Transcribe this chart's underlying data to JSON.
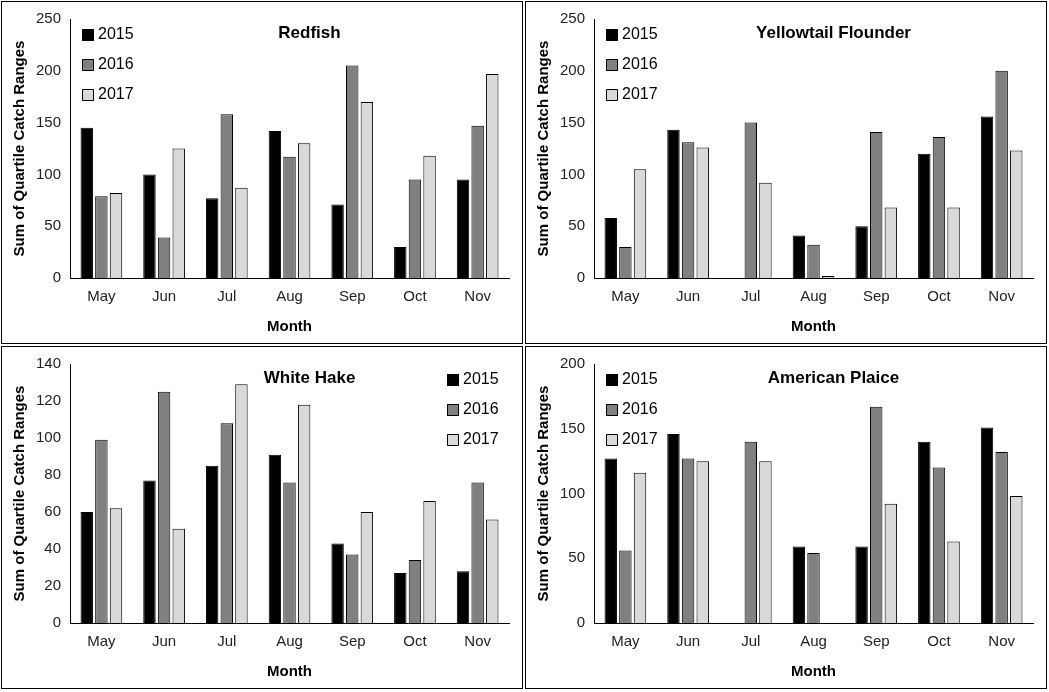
{
  "chart_data": [
    {
      "type": "bar",
      "title": "Redfish",
      "xlabel": "Month",
      "ylabel": "Sum of Quartile Catch Ranges",
      "categories": [
        "May",
        "Jun",
        "Jul",
        "Aug",
        "Sep",
        "Oct",
        "Nov"
      ],
      "ylim": [
        0,
        250
      ],
      "yticks": [
        0,
        50,
        100,
        150,
        200,
        250
      ],
      "grid": false,
      "legend": "top left",
      "series": [
        {
          "name": "2015",
          "color": "#000000",
          "values": [
            145,
            100,
            77,
            142,
            71,
            30,
            95
          ]
        },
        {
          "name": "2016",
          "color": "#808080",
          "values": [
            79,
            39,
            158,
            117,
            205,
            95,
            147
          ]
        },
        {
          "name": "2017",
          "color": "#d9d9d9",
          "values": [
            82,
            125,
            87,
            130,
            170,
            118,
            197
          ]
        }
      ]
    },
    {
      "type": "bar",
      "title": "Yellowtail Flounder",
      "xlabel": "Month",
      "ylabel": "Sum of Quartile Catch Ranges",
      "categories": [
        "May",
        "Jun",
        "Jul",
        "Aug",
        "Sep",
        "Oct",
        "Nov"
      ],
      "ylim": [
        0,
        250
      ],
      "yticks": [
        0,
        50,
        100,
        150,
        200,
        250
      ],
      "grid": false,
      "legend": "top left",
      "series": [
        {
          "name": "2015",
          "color": "#000000",
          "values": [
            58,
            143,
            0,
            41,
            50,
            120,
            156
          ]
        },
        {
          "name": "2016",
          "color": "#808080",
          "values": [
            30,
            131,
            150,
            32,
            141,
            136,
            200
          ]
        },
        {
          "name": "2017",
          "color": "#d9d9d9",
          "values": [
            105,
            126,
            92,
            2,
            68,
            68,
            123
          ]
        }
      ]
    },
    {
      "type": "bar",
      "title": "White Hake",
      "xlabel": "Month",
      "ylabel": "Sum of Quartile Catch Ranges",
      "categories": [
        "May",
        "Jun",
        "Jul",
        "Aug",
        "Sep",
        "Oct",
        "Nov"
      ],
      "ylim": [
        0,
        140
      ],
      "yticks": [
        0,
        20,
        40,
        60,
        80,
        100,
        120,
        140
      ],
      "grid": false,
      "legend": "top right",
      "series": [
        {
          "name": "2015",
          "color": "#000000",
          "values": [
            60,
            77,
            85,
            91,
            43,
            27,
            28
          ]
        },
        {
          "name": "2016",
          "color": "#808080",
          "values": [
            99,
            125,
            108,
            76,
            37,
            34,
            76
          ]
        },
        {
          "name": "2017",
          "color": "#d9d9d9",
          "values": [
            62,
            51,
            129,
            118,
            60,
            66,
            56
          ]
        }
      ]
    },
    {
      "type": "bar",
      "title": "American Plaice",
      "xlabel": "Month",
      "ylabel": "Sum of Quartile Catch Ranges",
      "categories": [
        "May",
        "Jun",
        "Jul",
        "Aug",
        "Sep",
        "Oct",
        "Nov"
      ],
      "ylim": [
        0,
        200
      ],
      "yticks": [
        0,
        50,
        100,
        150,
        200
      ],
      "grid": false,
      "legend": "top left",
      "series": [
        {
          "name": "2015",
          "color": "#000000",
          "values": [
            127,
            146,
            0,
            59,
            59,
            140,
            151
          ]
        },
        {
          "name": "2016",
          "color": "#808080",
          "values": [
            56,
            127,
            140,
            54,
            167,
            120,
            132
          ]
        },
        {
          "name": "2017",
          "color": "#d9d9d9",
          "values": [
            116,
            125,
            125,
            0,
            92,
            63,
            98
          ]
        }
      ]
    }
  ]
}
